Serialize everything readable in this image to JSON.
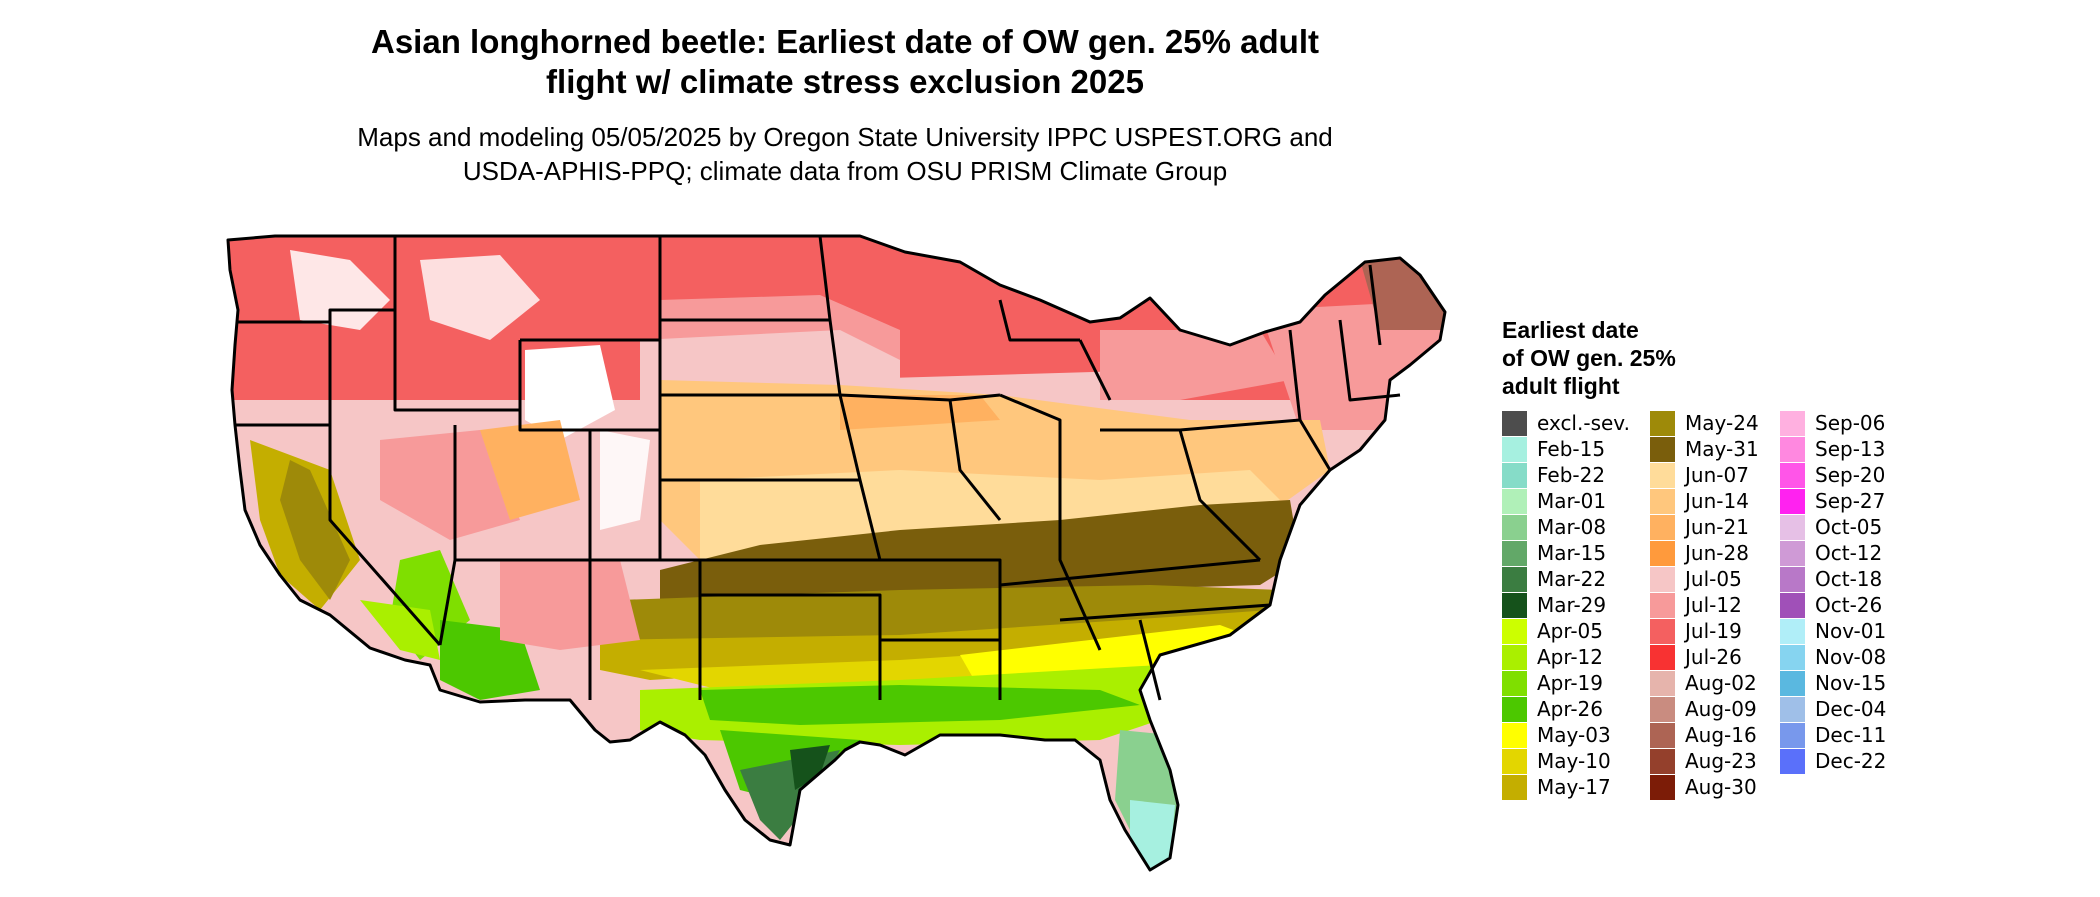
{
  "title_line1": "Asian longhorned beetle: Earliest date of OW gen. 25% adult",
  "title_line2": "flight w/ climate stress exclusion 2025",
  "subtitle_line1": "Maps and modeling 05/05/2025 by Oregon State University IPPC USPEST.ORG and",
  "subtitle_line2": "USDA-APHIS-PPQ; climate data from OSU PRISM Climate Group",
  "legend": {
    "title_line1": "Earliest date",
    "title_line2": "of OW gen. 25%",
    "title_line3": "adult flight",
    "columns": [
      [
        {
          "label": "excl.-sev.",
          "color": "#4d4d4d"
        },
        {
          "label": "Feb-15",
          "color": "#a6f0e0"
        },
        {
          "label": "Feb-22",
          "color": "#86dcc8"
        },
        {
          "label": "Mar-01",
          "color": "#b0f0b8"
        },
        {
          "label": "Mar-08",
          "color": "#8ad08f"
        },
        {
          "label": "Mar-15",
          "color": "#62a868"
        },
        {
          "label": "Mar-22",
          "color": "#3b7d41"
        },
        {
          "label": "Mar-29",
          "color": "#15521b"
        },
        {
          "label": "Apr-05",
          "color": "#ccff00"
        },
        {
          "label": "Apr-12",
          "color": "#aaef00"
        },
        {
          "label": "Apr-19",
          "color": "#7fdf00"
        },
        {
          "label": "Apr-26",
          "color": "#4cc800"
        },
        {
          "label": "May-03",
          "color": "#ffff00"
        },
        {
          "label": "May-10",
          "color": "#e3d600"
        },
        {
          "label": "May-17",
          "color": "#c4ae00"
        }
      ],
      [
        {
          "label": "May-24",
          "color": "#9e8a09"
        },
        {
          "label": "May-31",
          "color": "#7a5e0c"
        },
        {
          "label": "Jun-07",
          "color": "#ffdc9a"
        },
        {
          "label": "Jun-14",
          "color": "#ffc77d"
        },
        {
          "label": "Jun-21",
          "color": "#ffb160"
        },
        {
          "label": "Jun-28",
          "color": "#ff9a3c"
        },
        {
          "label": "Jul-05",
          "color": "#f6c6c6"
        },
        {
          "label": "Jul-12",
          "color": "#f79a9a"
        },
        {
          "label": "Jul-19",
          "color": "#f46060"
        },
        {
          "label": "Jul-26",
          "color": "#f83232"
        },
        {
          "label": "Aug-02",
          "color": "#e6b4ac"
        },
        {
          "label": "Aug-09",
          "color": "#c98c80"
        },
        {
          "label": "Aug-16",
          "color": "#ad6454"
        },
        {
          "label": "Aug-23",
          "color": "#94402c"
        },
        {
          "label": "Aug-30",
          "color": "#7c1c07"
        }
      ],
      [
        {
          "label": "Sep-06",
          "color": "#ffb0e0"
        },
        {
          "label": "Sep-13",
          "color": "#ff88e0"
        },
        {
          "label": "Sep-20",
          "color": "#ff55e8"
        },
        {
          "label": "Sep-27",
          "color": "#ff22f0"
        },
        {
          "label": "Oct-05",
          "color": "#e6c0e6"
        },
        {
          "label": "Oct-12",
          "color": "#cf9ad6"
        },
        {
          "label": "Oct-18",
          "color": "#b878c8"
        },
        {
          "label": "Oct-26",
          "color": "#a050b8"
        },
        {
          "label": "Nov-01",
          "color": "#b0eef8"
        },
        {
          "label": "Nov-08",
          "color": "#86d4f0"
        },
        {
          "label": "Nov-15",
          "color": "#5ab8e0"
        },
        {
          "label": "Dec-04",
          "color": "#9fbfe8"
        },
        {
          "label": "Dec-11",
          "color": "#7898ec"
        },
        {
          "label": "Dec-22",
          "color": "#5a70fa"
        }
      ]
    ]
  }
}
